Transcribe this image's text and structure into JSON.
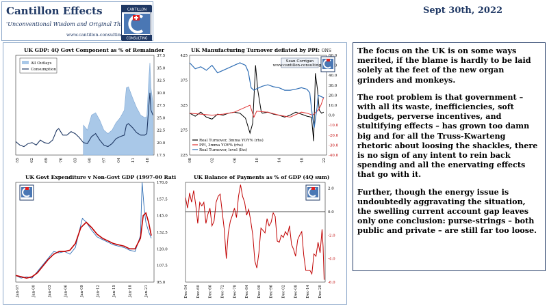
{
  "header": {
    "brand_title": "Cantillon Effects",
    "tagline": "'Unconventional Wisdom and Original Thinking'",
    "url": "www.cantillon-consulting.ch",
    "logo_top": "CANTILLON",
    "logo_bottom": "CONSULTING",
    "date": "Sept 30th, 2022"
  },
  "commentary": {
    "paragraphs": [
      "The focus on the UK is on some ways merited, if the blame is hardly to be laid solely at the feet of the new organ grinders and monkeys.",
      "The root problem is that government – with all its waste, inefficiencies, soft budgets, perverse incentives, and stultifying effects – has grown too damn big and for all the Truss-Kwarteng rhetoric about loosing the shackles, there is no sign of any intent to rein back spending and all the enervating effects that go with it.",
      "Further, though the energy issue is undoubtedly aggravating the situation, the swelling current account gap leaves only one conclusion: purse-strings – both public and private – are still far too loose."
    ]
  },
  "chart_data": [
    {
      "type": "area",
      "title": "UK GDP: 4Q Govt Component as % of Remainder",
      "x_ticks": [
        "Dec-55",
        "Dec-62",
        "Dec-69",
        "Dec-76",
        "Dec-83",
        "Dec-90",
        "Dec-97",
        "Dec-04",
        "Dec-11",
        "Dec-18"
      ],
      "ylim": [
        17.5,
        37.5
      ],
      "y_ticks": [
        "37.5",
        "35.0",
        "32.5",
        "30.0",
        "27.5",
        "25.0",
        "22.5",
        "20.0",
        "17.5"
      ],
      "legend": [
        "All Outlays",
        "Consumption"
      ],
      "colors": {
        "area": "#a9c8e8",
        "line": "#1f3864"
      },
      "series": [
        {
          "name": "All Outlays",
          "x": [
            1988,
            1990,
            1992,
            1994,
            1996,
            1998,
            2000,
            2002,
            2004,
            2006,
            2008,
            2009,
            2010,
            2012,
            2014,
            2016,
            2018,
            2019,
            2020,
            2020.5,
            2021,
            2022
          ],
          "values": [
            23.5,
            22.5,
            25.5,
            26,
            24.5,
            22.5,
            21.8,
            22.5,
            24,
            25,
            26.5,
            31,
            31.2,
            29,
            27,
            25.5,
            25,
            25.2,
            33,
            36,
            31,
            28
          ]
        },
        {
          "name": "Consumption",
          "x": [
            1955,
            1957,
            1959,
            1961,
            1963,
            1965,
            1967,
            1969,
            1971,
            1973,
            1975,
            1976,
            1978,
            1980,
            1982,
            1984,
            1986,
            1988,
            1990,
            1992,
            1994,
            1996,
            1998,
            2000,
            2002,
            2004,
            2006,
            2008,
            2009,
            2010,
            2012,
            2014,
            2016,
            2018,
            2019,
            2020,
            2020.5,
            2021,
            2022
          ],
          "values": [
            20.2,
            19.5,
            19.2,
            19.8,
            20,
            19.5,
            20.5,
            20,
            19.8,
            20.5,
            22.5,
            22.8,
            21.5,
            21.5,
            22.2,
            21.8,
            21,
            20,
            19.8,
            21.2,
            21.8,
            20.5,
            19.5,
            19.2,
            19.8,
            20.8,
            21.2,
            21.5,
            23.5,
            23.8,
            23,
            22,
            21.5,
            21.5,
            21.8,
            27.5,
            30,
            26.5,
            25.5
          ]
        }
      ]
    },
    {
      "type": "line",
      "title": "UK Manufacturing Turnover deflated by PPI:",
      "title_suffix": "ONS",
      "x_ticks": [
        "Dec-98",
        "Dec-02",
        "Dec-06",
        "Dec-10",
        "Dec-14",
        "Dec-18",
        "Dec-22"
      ],
      "left_ticks": [
        "425",
        "375",
        "325",
        "275",
        "225"
      ],
      "right_ticks": [
        "60.0",
        "50.0",
        "40.0",
        "30.0",
        "20.0",
        "10.0",
        "0.0",
        "-10.0",
        "-20.0",
        "-30.0",
        "-40.0"
      ],
      "ylim_left": [
        225,
        425
      ],
      "ylim_right": [
        -40,
        60
      ],
      "credit": [
        "Sean Corrigan",
        "www.cantillon-consulting.ch"
      ],
      "legend": [
        "Real Turnover, 3mma YOY% (rhs)",
        "PPI, 3mma YOY% (rhs)",
        "Real Turnover, level (lhs)"
      ],
      "colors": {
        "level": "#2e6db4",
        "ppi": "#e03030",
        "real_yoy": "#000000"
      },
      "series": [
        {
          "name": "Real Turnover, level (lhs)",
          "x": [
            1998,
            1999,
            2000,
            2001,
            2002,
            2003,
            2004,
            2005,
            2006,
            2007,
            2008,
            2008.5,
            2009,
            2009.5,
            2010,
            2011,
            2012,
            2013,
            2014,
            2015,
            2016,
            2017,
            2018,
            2019,
            2019.5,
            2020,
            2020.3,
            2020.8,
            2021,
            2022
          ],
          "values": [
            410,
            398,
            402,
            395,
            405,
            390,
            395,
            400,
            405,
            410,
            405,
            392,
            360,
            355,
            358,
            363,
            366,
            362,
            360,
            355,
            355,
            357,
            360,
            357,
            350,
            300,
            280,
            320,
            345,
            340
          ]
        },
        {
          "name": "PPI, 3mma YOY% (rhs)",
          "x": [
            1998,
            2000,
            2002,
            2004,
            2006,
            2008,
            2008.8,
            2009.5,
            2010,
            2012,
            2014,
            2016,
            2018,
            2019,
            2020,
            2021,
            2021.5,
            2022
          ],
          "values": [
            2,
            1,
            0,
            1,
            3,
            8,
            10,
            -2,
            4,
            3,
            0,
            -2,
            3,
            2,
            0,
            5,
            10,
            18
          ]
        },
        {
          "name": "Real Turnover, 3mma YOY% (rhs)",
          "x": [
            1998,
            1999,
            2000,
            2001,
            2002,
            2003,
            2004,
            2005,
            2006,
            2007,
            2008,
            2008.8,
            2009.3,
            2009.8,
            2010.2,
            2010.8,
            2011,
            2012,
            2013,
            2014,
            2015,
            2016,
            2017,
            2018,
            2019,
            2019.8,
            2020.2,
            2020.5,
            2020.9,
            2021.2,
            2021.6,
            2022
          ],
          "values": [
            2,
            -1,
            3,
            -2,
            -4,
            1,
            0,
            2,
            3,
            2,
            -3,
            -18,
            -8,
            50,
            25,
            4,
            2,
            3,
            1,
            0,
            -2,
            0,
            3,
            1,
            -1,
            -2,
            -26,
            42,
            25,
            5,
            2,
            3
          ]
        }
      ]
    },
    {
      "type": "line",
      "title": "UK Govt Expenditure v Non-Govt GDP (1997-00 Ratio = 100)",
      "x_ticks": [
        "Jan-97",
        "Jan-00",
        "Jan-03",
        "Jan-06",
        "Jan-09",
        "Jan-12",
        "Jan-15",
        "Jan-18",
        "Jan-21"
      ],
      "ylim": [
        95,
        170
      ],
      "y_ticks": [
        "170.0",
        "157.5",
        "145.0",
        "132.5",
        "120.0",
        "107.5",
        "95.0"
      ],
      "colors": {
        "ratio": "#2e6db4",
        "trend": "#c00000"
      },
      "series": [
        {
          "name": "ratio",
          "x": [
            1997,
            1998,
            1999,
            2000,
            2001,
            2002,
            2003,
            2004,
            2005,
            2006,
            2007,
            2008,
            2008.7,
            2009.3,
            2010,
            2011,
            2012,
            2013,
            2014,
            2015,
            2016,
            2017,
            2018,
            2019,
            2020,
            2020.3,
            2020.7,
            2021,
            2021.5,
            2022
          ],
          "values": [
            100,
            98,
            99,
            98,
            103,
            108,
            113,
            118,
            117,
            118,
            116,
            121,
            133,
            143,
            140,
            134,
            129,
            127,
            125,
            123,
            122,
            121,
            119,
            118,
            130,
            178,
            150,
            140,
            133,
            128
          ]
        },
        {
          "name": "trend",
          "x": [
            1997,
            1998,
            1999,
            2000,
            2001,
            2002,
            2003,
            2004,
            2005,
            2006,
            2007,
            2008,
            2009,
            2010,
            2011,
            2012,
            2013,
            2014,
            2015,
            2016,
            2017,
            2018,
            2019,
            2020,
            2020.5,
            2021,
            2021.5,
            2022
          ],
          "values": [
            100,
            99,
            98,
            99,
            102,
            107,
            112,
            116,
            118,
            118,
            119,
            124,
            136,
            140,
            136,
            131,
            128,
            126,
            124,
            123,
            122,
            120,
            120,
            128,
            145,
            147,
            140,
            130
          ]
        }
      ]
    },
    {
      "type": "line",
      "title": "UK Balance of Payments as % of GDP (4Q sum)",
      "x_ticks": [
        "Dec-54",
        "Dec-60",
        "Dec-66",
        "Dec-72",
        "Dec-78",
        "Dec-84",
        "Dec-90",
        "Dec-96",
        "Dec-02",
        "Dec-08",
        "Dec-14",
        "Dec-20"
      ],
      "ylim": [
        -6.0,
        2.5
      ],
      "y_ticks": [
        "2.0",
        "0.0",
        "-2.0",
        "-4.0",
        "-6.0"
      ],
      "colors": {
        "line": "#c00000",
        "zero": "#000000"
      },
      "series": [
        {
          "name": "balance",
          "x": [
            1954,
            1955,
            1956,
            1957,
            1958,
            1959,
            1960,
            1961,
            1962,
            1963,
            1964,
            1965,
            1966,
            1967,
            1968,
            1969,
            1970,
            1971,
            1972,
            1973,
            1974,
            1975,
            1976,
            1977,
            1978,
            1979,
            1980,
            1981,
            1982,
            1983,
            1984,
            1985,
            1986,
            1987,
            1988,
            1989,
            1990,
            1991,
            1992,
            1993,
            1994,
            1995,
            1996,
            1997,
            1998,
            1999,
            2000,
            2001,
            2002,
            2003,
            2004,
            2005,
            2006,
            2007,
            2008,
            2009,
            2010,
            2011,
            2012,
            2013,
            2014,
            2015,
            2016,
            2017,
            2018,
            2019,
            2020,
            2021,
            2021.5,
            2022
          ],
          "values": [
            1.2,
            0.3,
            1.6,
            0.8,
            1.8,
            0.6,
            -1.0,
            0.8,
            0.5,
            0.8,
            -1.0,
            -0.2,
            0.3,
            -1.2,
            -0.8,
            0.8,
            1.3,
            1.5,
            0.0,
            -1.5,
            -4.0,
            -1.8,
            -0.8,
            -0.3,
            0.3,
            -0.5,
            1.3,
            2.3,
            1.3,
            0.8,
            -0.3,
            0.2,
            -0.8,
            -2.0,
            -4.2,
            -4.8,
            -3.5,
            -1.4,
            -1.6,
            -1.8,
            -0.6,
            -1.2,
            -0.9,
            -0.1,
            -0.4,
            -2.5,
            -2.6,
            -2.0,
            -2.2,
            -1.7,
            -2.0,
            -1.2,
            -2.8,
            -3.2,
            -3.8,
            -2.4,
            -2.0,
            -1.7,
            -3.7,
            -5.0,
            -5.0,
            -5.0,
            -5.3,
            -3.6,
            -3.8,
            -2.6,
            -3.5,
            -1.5,
            -3.0,
            -5.8
          ]
        }
      ]
    }
  ]
}
